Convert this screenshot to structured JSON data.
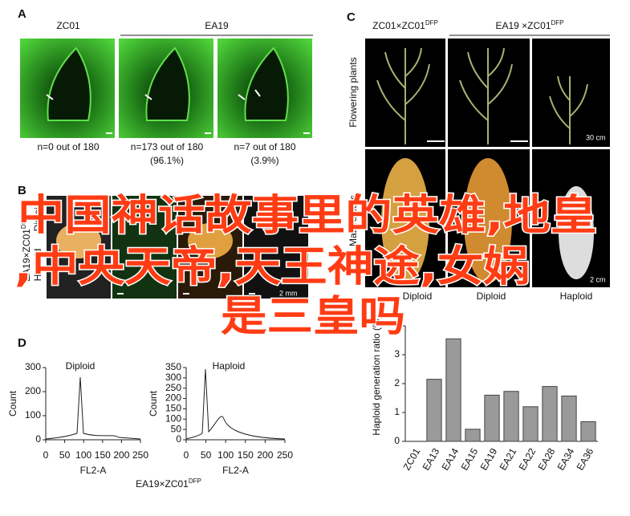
{
  "panels": {
    "a": {
      "label": "A",
      "headers": [
        "ZC01",
        "EA19"
      ],
      "captions": [
        [
          "n=0 out of 180"
        ],
        [
          "n=173 out of 180",
          "(96.1%)"
        ],
        [
          "n=7 out of 180",
          "(3.9%)"
        ]
      ]
    },
    "b": {
      "label": "B",
      "side_label": {
        "base": "EA19×ZC01",
        "sup": "DFP"
      },
      "row_labels": [
        "Haploid",
        "Diploid"
      ],
      "scale": "2 mm"
    },
    "c": {
      "label": "C",
      "headers": [
        {
          "base": "ZC01×ZC01",
          "sup": "DFP"
        },
        {
          "base": "EA19 ×ZC01",
          "sup": "DFP"
        }
      ],
      "scales": [
        "30 cm",
        "2 cm"
      ],
      "row_labels": [
        "Flowering plants",
        "Mature ears"
      ],
      "captions": [
        "Diploid",
        "Diploid",
        "Haploid"
      ]
    },
    "d": {
      "label": "D",
      "caption": {
        "base": "EA19×ZC01",
        "sup": "DFP"
      },
      "histograms": [
        {
          "title": "Diploid",
          "xlabel": "FL2-A",
          "ylabel": "Count",
          "xlim": [
            0,
            250
          ],
          "xticks": [
            0,
            50,
            100,
            150,
            200,
            250
          ],
          "ylim": [
            0,
            300
          ],
          "yticks": [
            0,
            100,
            200,
            300
          ]
        },
        {
          "title": "Haploid",
          "xlabel": "FL2-A",
          "ylabel": "Count",
          "xlim": [
            0,
            250
          ],
          "xticks": [
            0,
            50,
            100,
            150,
            200,
            250
          ],
          "ylim": [
            0,
            350
          ],
          "yticks": [
            0,
            50,
            100,
            150,
            200,
            250,
            300,
            350
          ]
        }
      ]
    }
  },
  "chart_data": {
    "type": "bar",
    "ylabel": "Haploid generation ratio (%)",
    "categories": [
      "ZC01",
      "EA13",
      "EA14",
      "EA15",
      "EA19",
      "EA21",
      "EA22",
      "EA28",
      "EA34",
      "EA36"
    ],
    "values": [
      0,
      2.15,
      3.55,
      0.42,
      1.6,
      1.73,
      1.2,
      1.9,
      1.57,
      0.68
    ],
    "color": "#9a9a9a",
    "ylim": [
      0,
      4
    ],
    "yticks": [
      0,
      1,
      2,
      3,
      4
    ]
  },
  "overlay": {
    "lines": [
      "中国神话故事里的英雄,地皇",
      ",中央天帝,天王神途,女娲",
      "是三皇吗"
    ]
  }
}
